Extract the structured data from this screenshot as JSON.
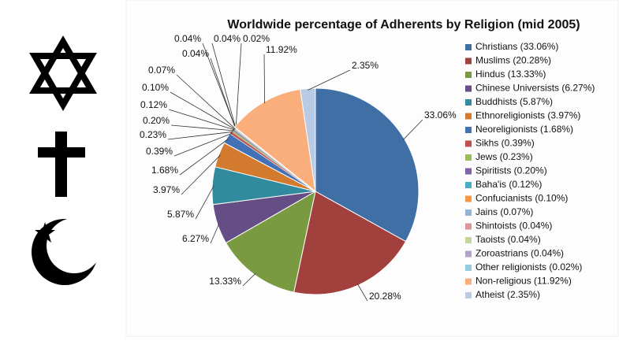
{
  "chart_data": {
    "type": "pie",
    "title": "Worldwide percentage of Adherents by Religion (mid 2005)",
    "categories": [
      "Christians (33.06%)",
      "Muslims (20.28%)",
      "Hindus (13.33%)",
      "Chinese Universists (6.27%)",
      "Buddhists (5.87%)",
      "Ethnoreligionists (3.97%)",
      "Neoreligionists (1.68%)",
      "Sikhs (0.39%)",
      "Jews (0.23%)",
      "Spiritists (0.20%)",
      "Baha'is (0.12%)",
      "Confucianists (0.10%)",
      "Jains (0.07%)",
      "Shintoists (0.04%)",
      "Taoists (0.04%)",
      "Zoroastrians (0.04%)",
      "Other religionists (0.02%)",
      "Non-religious (11.92%)",
      "Atheist (2.35%)"
    ],
    "values": [
      33.06,
      20.28,
      13.33,
      6.27,
      5.87,
      3.97,
      1.68,
      0.39,
      0.23,
      0.2,
      0.12,
      0.1,
      0.07,
      0.04,
      0.04,
      0.04,
      0.02,
      11.92,
      2.35
    ],
    "value_labels": [
      "33.06%",
      "20.28%",
      "13.33%",
      "6.27%",
      "5.87%",
      "3.97%",
      "1.68%",
      "0.39%",
      "0.23%",
      "0.20%",
      "0.12%",
      "0.10%",
      "0.07%",
      "0.04%",
      "0.04%",
      "0.04%",
      "0.02%",
      "11.92%",
      "2.35%"
    ],
    "colors": [
      "#3f6fa5",
      "#a2403d",
      "#7a9a42",
      "#654e85",
      "#318a9e",
      "#d27a2e",
      "#4272b5",
      "#c0504d",
      "#9bbb59",
      "#8064a2",
      "#4bacc6",
      "#f79646",
      "#95b3d7",
      "#d99694",
      "#c3d69b",
      "#b2a2c7",
      "#93cddd",
      "#f9ae7c",
      "#b9cbe4"
    ],
    "legend": "right"
  }
}
